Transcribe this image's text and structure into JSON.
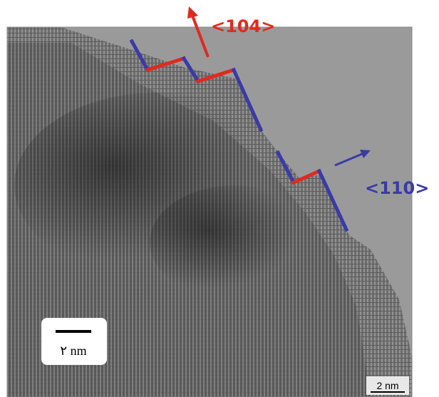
{
  "annotations": {
    "direction_104": "<104>",
    "direction_110": "<110>"
  },
  "scale_bars": {
    "overlay": "۲ nm",
    "original": "2 nm"
  }
}
